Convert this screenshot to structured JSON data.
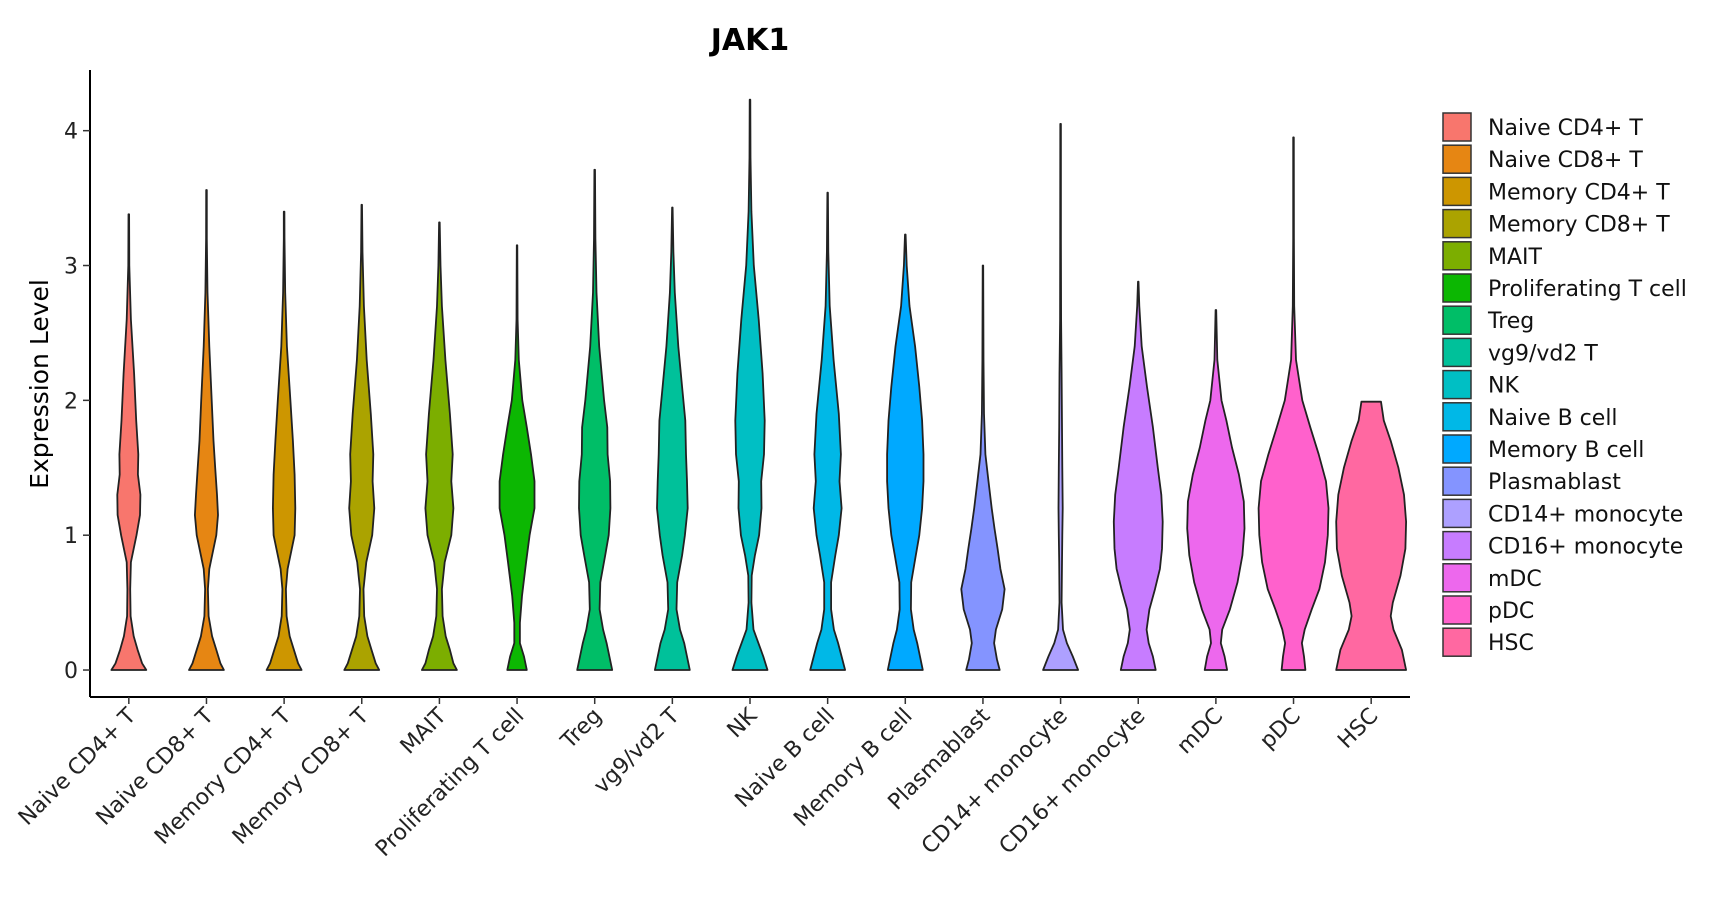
{
  "chart_data": {
    "type": "violin",
    "title": "JAK1",
    "xlabel": "",
    "ylabel": "Expression Level",
    "ylim": [
      -0.2,
      4.45
    ],
    "yticks": [
      0,
      1,
      2,
      3,
      4
    ],
    "legend_position": "right",
    "categories": [
      "Naive CD4+ T",
      "Naive CD8+ T",
      "Memory CD4+ T",
      "Memory CD8+ T",
      "MAIT",
      "Proliferating T cell",
      "Treg",
      "vg9/vd2 T",
      "NK",
      "Naive B cell",
      "Memory B cell",
      "Plasmablast",
      "CD14+ monocyte",
      "CD16+ monocyte",
      "mDC",
      "pDC",
      "HSC"
    ],
    "colors": [
      "#F8766D",
      "#E68613",
      "#CD9600",
      "#ABA300",
      "#7CAE00",
      "#0CB702",
      "#00BE67",
      "#00C19A",
      "#00BFC4",
      "#00B8E7",
      "#00A9FF",
      "#8494FF",
      "#ADA0FF",
      "#C77CFF",
      "#ED68ED",
      "#FF61CC",
      "#FF68A1"
    ],
    "max_values": [
      3.38,
      3.56,
      3.4,
      3.45,
      3.32,
      3.15,
      3.71,
      3.43,
      4.23,
      3.54,
      3.23,
      3.0,
      4.05,
      2.88,
      2.67,
      3.95,
      1.99
    ],
    "density_profiles": [
      [
        [
          0,
          0.5
        ],
        [
          0.05,
          0.38
        ],
        [
          0.15,
          0.25
        ],
        [
          0.25,
          0.14
        ],
        [
          0.4,
          0.05
        ],
        [
          0.6,
          0.04
        ],
        [
          0.8,
          0.06
        ],
        [
          1.0,
          0.22
        ],
        [
          1.15,
          0.32
        ],
        [
          1.3,
          0.33
        ],
        [
          1.45,
          0.26
        ],
        [
          1.6,
          0.27
        ],
        [
          1.85,
          0.21
        ],
        [
          2.2,
          0.15
        ],
        [
          2.6,
          0.06
        ],
        [
          3.0,
          0.015
        ],
        [
          3.38,
          0.008
        ]
      ],
      [
        [
          0,
          0.5
        ],
        [
          0.05,
          0.4
        ],
        [
          0.15,
          0.28
        ],
        [
          0.25,
          0.16
        ],
        [
          0.4,
          0.06
        ],
        [
          0.6,
          0.04
        ],
        [
          0.75,
          0.08
        ],
        [
          1.0,
          0.28
        ],
        [
          1.15,
          0.33
        ],
        [
          1.3,
          0.3
        ],
        [
          1.5,
          0.25
        ],
        [
          1.7,
          0.2
        ],
        [
          2.0,
          0.15
        ],
        [
          2.4,
          0.08
        ],
        [
          2.8,
          0.03
        ],
        [
          3.2,
          0.01
        ],
        [
          3.56,
          0.008
        ]
      ],
      [
        [
          0,
          0.5
        ],
        [
          0.05,
          0.4
        ],
        [
          0.15,
          0.28
        ],
        [
          0.25,
          0.16
        ],
        [
          0.4,
          0.07
        ],
        [
          0.6,
          0.05
        ],
        [
          0.75,
          0.1
        ],
        [
          1.0,
          0.3
        ],
        [
          1.2,
          0.32
        ],
        [
          1.45,
          0.3
        ],
        [
          1.7,
          0.25
        ],
        [
          2.0,
          0.18
        ],
        [
          2.4,
          0.08
        ],
        [
          2.8,
          0.03
        ],
        [
          3.2,
          0.01
        ],
        [
          3.4,
          0.008
        ]
      ],
      [
        [
          0,
          0.5
        ],
        [
          0.05,
          0.4
        ],
        [
          0.15,
          0.28
        ],
        [
          0.25,
          0.16
        ],
        [
          0.4,
          0.07
        ],
        [
          0.6,
          0.05
        ],
        [
          0.8,
          0.13
        ],
        [
          1.0,
          0.3
        ],
        [
          1.2,
          0.36
        ],
        [
          1.4,
          0.31
        ],
        [
          1.6,
          0.33
        ],
        [
          1.9,
          0.26
        ],
        [
          2.3,
          0.14
        ],
        [
          2.7,
          0.06
        ],
        [
          3.1,
          0.02
        ],
        [
          3.45,
          0.008
        ]
      ],
      [
        [
          0,
          0.5
        ],
        [
          0.05,
          0.4
        ],
        [
          0.15,
          0.3
        ],
        [
          0.25,
          0.18
        ],
        [
          0.4,
          0.09
        ],
        [
          0.6,
          0.07
        ],
        [
          0.8,
          0.15
        ],
        [
          1.0,
          0.34
        ],
        [
          1.2,
          0.4
        ],
        [
          1.4,
          0.34
        ],
        [
          1.6,
          0.38
        ],
        [
          1.9,
          0.3
        ],
        [
          2.3,
          0.17
        ],
        [
          2.7,
          0.07
        ],
        [
          3.0,
          0.03
        ],
        [
          3.32,
          0.008
        ]
      ],
      [
        [
          0,
          0.28
        ],
        [
          0.1,
          0.2
        ],
        [
          0.2,
          0.08
        ],
        [
          0.35,
          0.08
        ],
        [
          0.55,
          0.14
        ],
        [
          0.8,
          0.26
        ],
        [
          1.0,
          0.36
        ],
        [
          1.2,
          0.5
        ],
        [
          1.4,
          0.5
        ],
        [
          1.6,
          0.4
        ],
        [
          1.8,
          0.28
        ],
        [
          2.0,
          0.15
        ],
        [
          2.3,
          0.05
        ],
        [
          2.6,
          0.015
        ],
        [
          3.15,
          0.008
        ]
      ],
      [
        [
          0,
          0.5
        ],
        [
          0.1,
          0.42
        ],
        [
          0.2,
          0.34
        ],
        [
          0.3,
          0.24
        ],
        [
          0.45,
          0.14
        ],
        [
          0.65,
          0.16
        ],
        [
          0.85,
          0.3
        ],
        [
          1.0,
          0.4
        ],
        [
          1.2,
          0.45
        ],
        [
          1.4,
          0.44
        ],
        [
          1.6,
          0.37
        ],
        [
          1.8,
          0.36
        ],
        [
          2.0,
          0.27
        ],
        [
          2.4,
          0.13
        ],
        [
          2.8,
          0.05
        ],
        [
          3.2,
          0.02
        ],
        [
          3.71,
          0.008
        ]
      ],
      [
        [
          0,
          0.5
        ],
        [
          0.1,
          0.42
        ],
        [
          0.2,
          0.34
        ],
        [
          0.3,
          0.22
        ],
        [
          0.45,
          0.12
        ],
        [
          0.65,
          0.14
        ],
        [
          0.85,
          0.28
        ],
        [
          1.0,
          0.36
        ],
        [
          1.2,
          0.44
        ],
        [
          1.4,
          0.42
        ],
        [
          1.6,
          0.39
        ],
        [
          1.85,
          0.37
        ],
        [
          2.1,
          0.28
        ],
        [
          2.4,
          0.17
        ],
        [
          2.8,
          0.07
        ],
        [
          3.1,
          0.03
        ],
        [
          3.43,
          0.008
        ]
      ],
      [
        [
          0,
          0.5
        ],
        [
          0.1,
          0.38
        ],
        [
          0.2,
          0.24
        ],
        [
          0.3,
          0.1
        ],
        [
          0.5,
          0.04
        ],
        [
          0.7,
          0.05
        ],
        [
          0.85,
          0.14
        ],
        [
          1.0,
          0.26
        ],
        [
          1.2,
          0.33
        ],
        [
          1.4,
          0.32
        ],
        [
          1.6,
          0.4
        ],
        [
          1.85,
          0.42
        ],
        [
          2.2,
          0.36
        ],
        [
          2.6,
          0.25
        ],
        [
          3.0,
          0.11
        ],
        [
          3.4,
          0.04
        ],
        [
          3.8,
          0.015
        ],
        [
          4.23,
          0.008
        ]
      ],
      [
        [
          0,
          0.5
        ],
        [
          0.1,
          0.4
        ],
        [
          0.2,
          0.3
        ],
        [
          0.3,
          0.18
        ],
        [
          0.45,
          0.1
        ],
        [
          0.65,
          0.1
        ],
        [
          0.85,
          0.22
        ],
        [
          1.0,
          0.32
        ],
        [
          1.2,
          0.4
        ],
        [
          1.4,
          0.34
        ],
        [
          1.6,
          0.38
        ],
        [
          1.9,
          0.32
        ],
        [
          2.3,
          0.17
        ],
        [
          2.7,
          0.06
        ],
        [
          3.1,
          0.02
        ],
        [
          3.54,
          0.008
        ]
      ],
      [
        [
          0,
          0.5
        ],
        [
          0.1,
          0.42
        ],
        [
          0.2,
          0.34
        ],
        [
          0.3,
          0.24
        ],
        [
          0.45,
          0.16
        ],
        [
          0.65,
          0.17
        ],
        [
          0.85,
          0.3
        ],
        [
          1.0,
          0.4
        ],
        [
          1.2,
          0.48
        ],
        [
          1.4,
          0.52
        ],
        [
          1.6,
          0.52
        ],
        [
          1.85,
          0.48
        ],
        [
          2.1,
          0.4
        ],
        [
          2.4,
          0.28
        ],
        [
          2.7,
          0.12
        ],
        [
          3.0,
          0.04
        ],
        [
          3.23,
          0.008
        ]
      ],
      [
        [
          0,
          0.48
        ],
        [
          0.08,
          0.4
        ],
        [
          0.2,
          0.32
        ],
        [
          0.3,
          0.37
        ],
        [
          0.45,
          0.55
        ],
        [
          0.6,
          0.62
        ],
        [
          0.75,
          0.5
        ],
        [
          0.9,
          0.42
        ],
        [
          1.05,
          0.33
        ],
        [
          1.2,
          0.25
        ],
        [
          1.4,
          0.16
        ],
        [
          1.6,
          0.07
        ],
        [
          1.9,
          0.03
        ],
        [
          2.3,
          0.015
        ],
        [
          3.0,
          0.008
        ]
      ],
      [
        [
          0,
          0.5
        ],
        [
          0.1,
          0.35
        ],
        [
          0.2,
          0.18
        ],
        [
          0.3,
          0.07
        ],
        [
          0.5,
          0.03
        ],
        [
          0.8,
          0.04
        ],
        [
          1.0,
          0.05
        ],
        [
          1.2,
          0.06
        ],
        [
          1.5,
          0.05
        ],
        [
          1.8,
          0.04
        ],
        [
          2.2,
          0.03
        ],
        [
          2.6,
          0.015
        ],
        [
          3.2,
          0.01
        ],
        [
          4.05,
          0.008
        ]
      ],
      [
        [
          0,
          0.5
        ],
        [
          0.1,
          0.42
        ],
        [
          0.2,
          0.3
        ],
        [
          0.3,
          0.24
        ],
        [
          0.45,
          0.32
        ],
        [
          0.6,
          0.48
        ],
        [
          0.75,
          0.62
        ],
        [
          0.9,
          0.68
        ],
        [
          1.1,
          0.7
        ],
        [
          1.3,
          0.66
        ],
        [
          1.5,
          0.56
        ],
        [
          1.8,
          0.42
        ],
        [
          2.1,
          0.25
        ],
        [
          2.4,
          0.1
        ],
        [
          2.7,
          0.03
        ],
        [
          2.88,
          0.008
        ]
      ],
      [
        [
          0,
          0.32
        ],
        [
          0.1,
          0.25
        ],
        [
          0.2,
          0.14
        ],
        [
          0.3,
          0.18
        ],
        [
          0.45,
          0.4
        ],
        [
          0.65,
          0.62
        ],
        [
          0.85,
          0.76
        ],
        [
          1.05,
          0.82
        ],
        [
          1.25,
          0.8
        ],
        [
          1.45,
          0.66
        ],
        [
          1.65,
          0.46
        ],
        [
          1.85,
          0.3
        ],
        [
          2.0,
          0.16
        ],
        [
          2.3,
          0.04
        ],
        [
          2.67,
          0.008
        ]
      ],
      [
        [
          0,
          0.34
        ],
        [
          0.1,
          0.3
        ],
        [
          0.2,
          0.24
        ],
        [
          0.3,
          0.32
        ],
        [
          0.45,
          0.52
        ],
        [
          0.6,
          0.74
        ],
        [
          0.8,
          0.9
        ],
        [
          1.0,
          0.98
        ],
        [
          1.2,
          1.0
        ],
        [
          1.4,
          0.93
        ],
        [
          1.6,
          0.72
        ],
        [
          1.8,
          0.48
        ],
        [
          2.0,
          0.25
        ],
        [
          2.3,
          0.07
        ],
        [
          2.7,
          0.02
        ],
        [
          3.2,
          0.01
        ],
        [
          3.95,
          0.008
        ]
      ],
      [
        [
          0,
          1.0
        ],
        [
          0.15,
          0.88
        ],
        [
          0.3,
          0.64
        ],
        [
          0.4,
          0.56
        ],
        [
          0.5,
          0.62
        ],
        [
          0.7,
          0.84
        ],
        [
          0.9,
          0.98
        ],
        [
          1.1,
          1.0
        ],
        [
          1.3,
          0.94
        ],
        [
          1.5,
          0.78
        ],
        [
          1.7,
          0.56
        ],
        [
          1.85,
          0.36
        ],
        [
          1.99,
          0.28
        ]
      ]
    ]
  }
}
